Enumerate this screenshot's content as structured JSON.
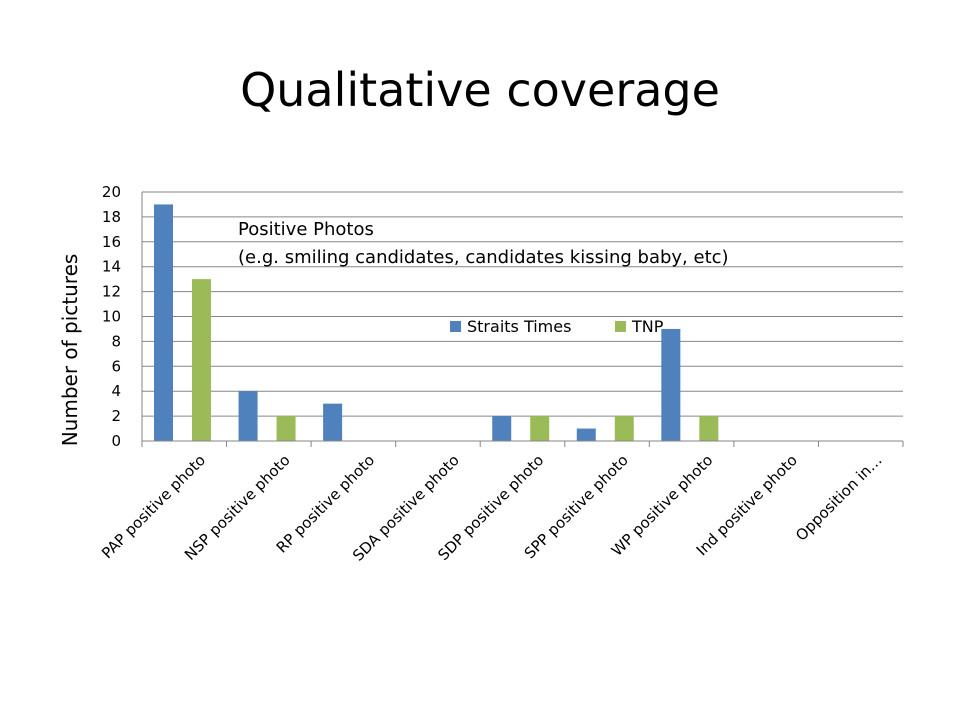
{
  "slide": {
    "title": "Qualitative coverage"
  },
  "chart_data": {
    "type": "bar",
    "categories": [
      "PAP positive photo",
      "NSP positive photo",
      "RP positive photo",
      "SDA positive photo",
      "SDP positive photo",
      "SPP positive photo",
      "WP positive photo",
      "Ind positive photo",
      "Opposition in…"
    ],
    "series": [
      {
        "name": "Straits Times",
        "color": "#4F81BD",
        "values": [
          19,
          4,
          3,
          0,
          2,
          1,
          9,
          0,
          0
        ]
      },
      {
        "name": "TNP",
        "color": "#9BBB59",
        "values": [
          13,
          2,
          0,
          0,
          2,
          2,
          2,
          0,
          0
        ]
      }
    ],
    "ylabel": "Number of pictures",
    "xlabel": "",
    "ylim": [
      0,
      20
    ],
    "yticks": [
      0,
      2,
      4,
      6,
      8,
      10,
      12,
      14,
      16,
      18,
      20
    ],
    "grid": true,
    "legend_position": "inside-center",
    "annotation": [
      "Positive Photos",
      "(e.g. smiling candidates, candidates kissing baby, etc)"
    ]
  }
}
